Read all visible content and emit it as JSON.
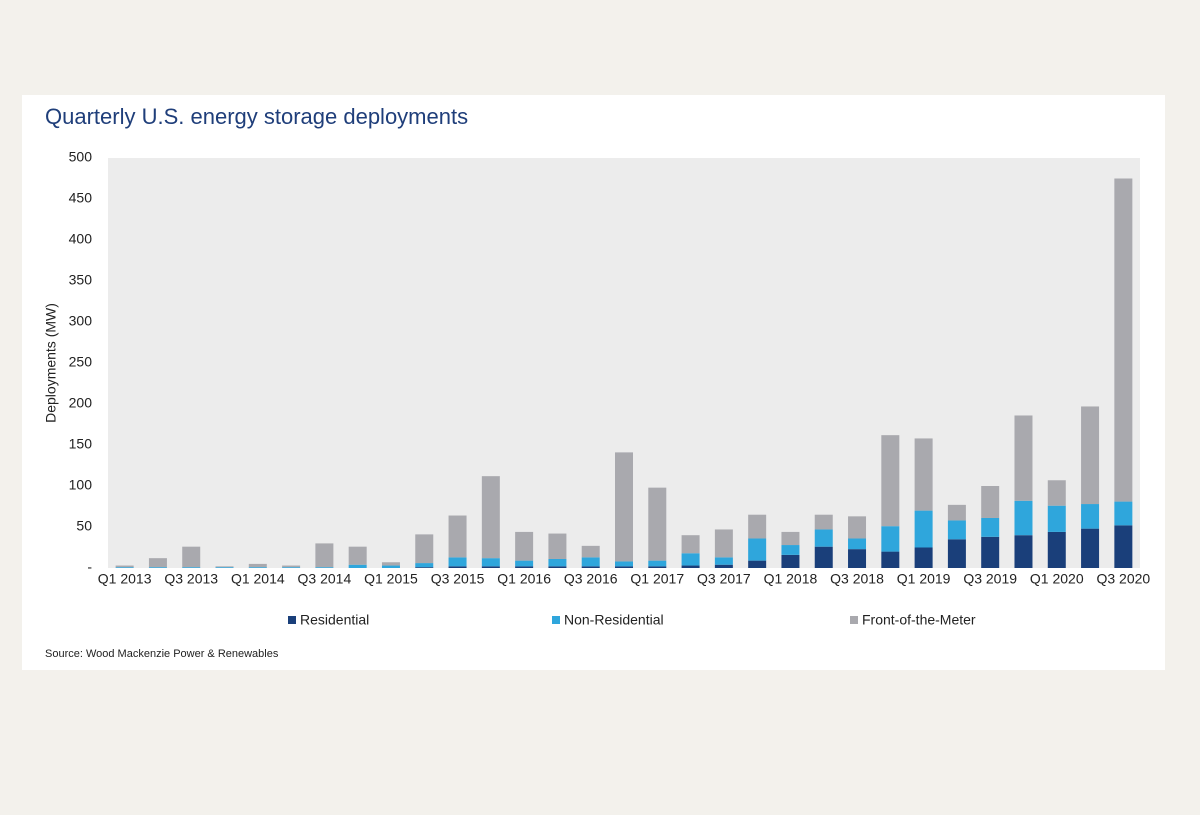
{
  "chart_data": {
    "type": "stacked-bar",
    "title": "Quarterly U.S. energy storage deployments",
    "y_label": "Deployments (MW)",
    "source": "Source: Wood Mackenzie Power & Renewables",
    "categories": [
      "Q1 2013",
      null,
      "Q3 2013",
      null,
      "Q1 2014",
      null,
      "Q3 2014",
      null,
      "Q1 2015",
      null,
      "Q3 2015",
      null,
      "Q1 2016",
      null,
      "Q3 2016",
      null,
      "Q1 2017",
      null,
      "Q3 2017",
      null,
      "Q1 2018",
      null,
      "Q3 2018",
      null,
      "Q1 2019",
      null,
      "Q3 2019",
      null,
      "Q1 2020",
      null,
      "Q3 2020"
    ],
    "series": [
      {
        "name": "Residential",
        "color": "#1a3f7a",
        "values": [
          0,
          0,
          0,
          0,
          0,
          0,
          0,
          0,
          0,
          1,
          2,
          2,
          2,
          2,
          2,
          2,
          2,
          3,
          4,
          9,
          16,
          26,
          23,
          20,
          25,
          35,
          38,
          40,
          44,
          48,
          52
        ]
      },
      {
        "name": "Non-Residential",
        "color": "#2fa6dc",
        "values": [
          1,
          1,
          1,
          1,
          1,
          1,
          1,
          4,
          3,
          5,
          11,
          10,
          7,
          9,
          11,
          6,
          7,
          15,
          9,
          27,
          12,
          21,
          13,
          31,
          45,
          23,
          23,
          42,
          32,
          30,
          29
        ]
      },
      {
        "name": "Front-of-the-Meter",
        "color": "#a9a9ae",
        "values": [
          2,
          11,
          25,
          1,
          4,
          2,
          29,
          22,
          4,
          35,
          51,
          100,
          35,
          31,
          14,
          133,
          89,
          22,
          34,
          29,
          16,
          18,
          27,
          111,
          88,
          19,
          39,
          104,
          31,
          119,
          394
        ]
      }
    ],
    "ylim": [
      0,
      500
    ],
    "yticks": [
      {
        "value": 0,
        "label": "-"
      },
      50,
      100,
      150,
      200,
      250,
      300,
      350,
      400,
      450,
      500
    ],
    "legend": "bottom"
  }
}
